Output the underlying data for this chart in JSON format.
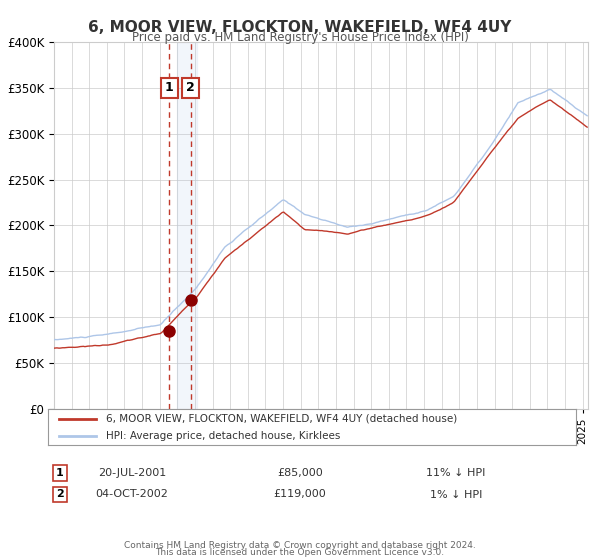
{
  "title": "6, MOOR VIEW, FLOCKTON, WAKEFIELD, WF4 4UY",
  "subtitle": "Price paid vs. HM Land Registry's House Price Index (HPI)",
  "legend_line1": "6, MOOR VIEW, FLOCKTON, WAKEFIELD, WF4 4UY (detached house)",
  "legend_line2": "HPI: Average price, detached house, Kirklees",
  "sale1_label": "1",
  "sale1_date": "20-JUL-2001",
  "sale1_price": "£85,000",
  "sale1_hpi": "11% ↓ HPI",
  "sale2_label": "2",
  "sale2_date": "04-OCT-2002",
  "sale2_price": "£119,000",
  "sale2_hpi": "1% ↓ HPI",
  "footer1": "Contains HM Land Registry data © Crown copyright and database right 2024.",
  "footer2": "This data is licensed under the Open Government Licence v3.0.",
  "sale1_x": 2001.55,
  "sale1_y": 85000,
  "sale2_x": 2002.75,
  "sale2_y": 119000,
  "vline1_x": 2001.55,
  "vline2_x": 2002.75,
  "shade_x1": 2002.0,
  "shade_x2": 2003.1,
  "hpi_color": "#aec6e8",
  "price_color": "#c0392b",
  "dot_color": "#8b0000",
  "background_color": "#ffffff",
  "grid_color": "#cccccc",
  "ylim": [
    0,
    400000
  ],
  "xlim_start": 1995.0,
  "xlim_end": 2025.3
}
